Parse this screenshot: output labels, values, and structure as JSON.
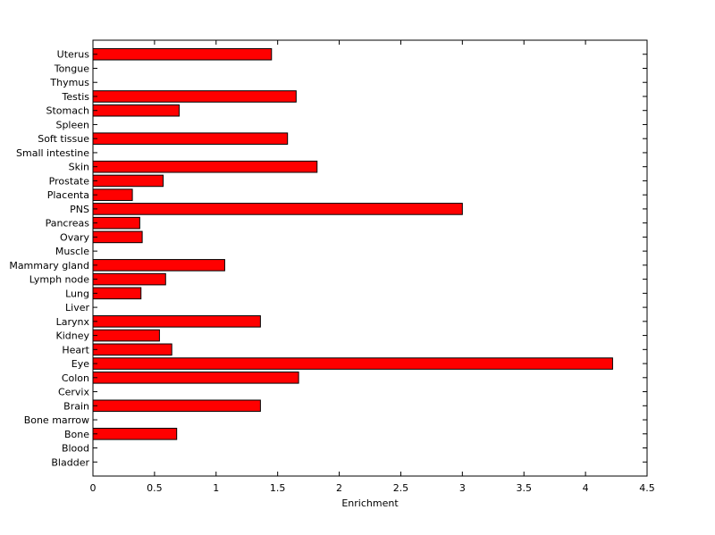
{
  "chart_data": {
    "type": "bar",
    "orientation": "horizontal",
    "title": "",
    "xlabel": "Enrichment",
    "ylabel": "",
    "xlim": [
      0,
      4.5
    ],
    "xticks": [
      0,
      0.5,
      1,
      1.5,
      2,
      2.5,
      3,
      3.5,
      4,
      4.5
    ],
    "xtick_labels": [
      "0",
      "0.5",
      "1",
      "1.5",
      "2",
      "2.5",
      "3",
      "3.5",
      "4",
      "4.5"
    ],
    "grid": false,
    "legend": false,
    "bar_color": "#ff0000",
    "bar_edge_color": "#000000",
    "categories": [
      "Bladder",
      "Blood",
      "Bone",
      "Bone marrow",
      "Brain",
      "Cervix",
      "Colon",
      "Eye",
      "Heart",
      "Kidney",
      "Larynx",
      "Liver",
      "Lung",
      "Lymph node",
      "Mammary gland",
      "Muscle",
      "Ovary",
      "Pancreas",
      "PNS",
      "Placenta",
      "Prostate",
      "Skin",
      "Small intestine",
      "Soft tissue",
      "Spleen",
      "Stomach",
      "Testis",
      "Thymus",
      "Tongue",
      "Uterus"
    ],
    "values": [
      0,
      0,
      0.68,
      0,
      1.36,
      0,
      1.67,
      4.22,
      0.64,
      0.54,
      1.36,
      0,
      0.39,
      0.59,
      1.07,
      0,
      0.4,
      0.38,
      3.0,
      0.32,
      0.57,
      1.82,
      0,
      1.58,
      0,
      0.7,
      1.65,
      0,
      0,
      1.45
    ]
  }
}
